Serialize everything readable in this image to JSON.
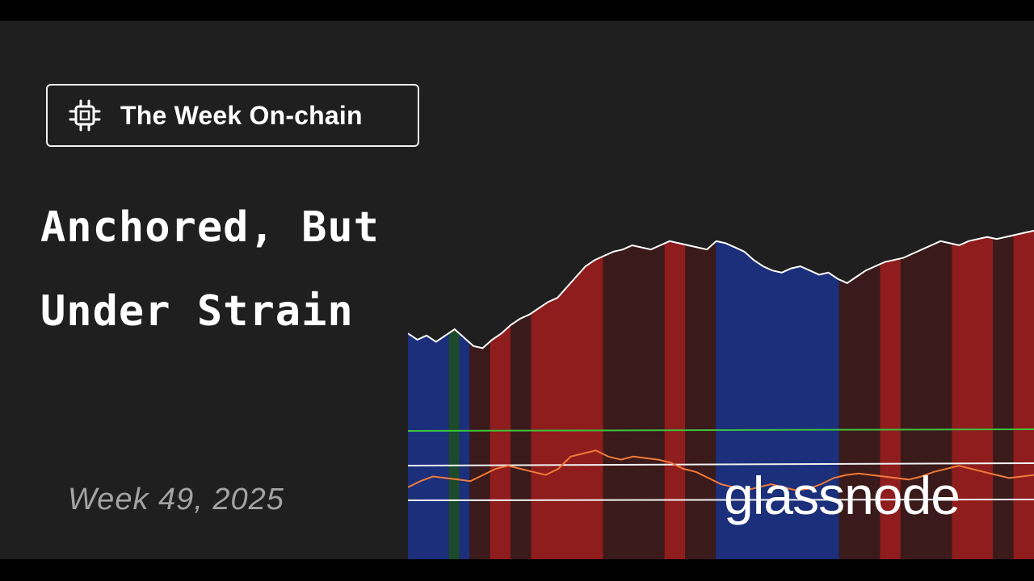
{
  "badge": {
    "label": "The Week On-chain",
    "icon": "chip-icon"
  },
  "title": {
    "line1": "Anchored, But",
    "line2": "Under Strain"
  },
  "week": "Week 49, 2025",
  "brand": "glassnode",
  "colors": {
    "background": "#1f1f1f",
    "regime_red": "#8f1d1d",
    "regime_dark_red": "#3a1a1a",
    "regime_blue": "#1b2f7a",
    "regime_green": "#1c4a2a",
    "price_line": "#ffffff",
    "oscillator": "#f07a3a",
    "upper_band": "#3ec23e",
    "lower_bands": "#f2f2f2"
  },
  "chart_data": {
    "type": "line",
    "x_range": [
      0,
      100
    ],
    "series": [
      {
        "values": [
          28,
          25,
          27,
          24,
          27,
          30,
          26,
          22,
          21,
          25,
          28,
          32,
          35,
          37,
          40,
          43,
          45,
          50,
          55,
          60,
          63,
          65,
          67,
          68,
          70,
          69,
          68,
          70,
          72,
          71,
          70,
          69,
          68,
          72,
          71,
          69,
          67,
          63,
          60,
          58,
          57,
          59,
          60,
          58,
          56,
          57,
          54,
          52,
          55,
          58,
          60,
          62,
          63,
          64,
          66,
          68,
          70,
          72,
          71,
          70,
          72,
          73,
          74,
          73,
          74,
          75,
          76,
          77
        ]
      },
      {
        "values": [
          38,
          42,
          45,
          44,
          43,
          42,
          46,
          50,
          52,
          50,
          48,
          46,
          50,
          58,
          60,
          62,
          58,
          56,
          58,
          57,
          56,
          54,
          50,
          48,
          44,
          40,
          38,
          36,
          38,
          40,
          38,
          36,
          37,
          40,
          44,
          46,
          47,
          46,
          45,
          44,
          43,
          45,
          48,
          50,
          52,
          50,
          48,
          46,
          44,
          45,
          46
        ]
      }
    ],
    "regimes": [
      "blue",
      "blue",
      "green",
      "blue",
      "dark_red",
      "red",
      "dark_red",
      "red",
      "red",
      "dark_red",
      "dark_red",
      "red",
      "dark_red",
      "blue",
      "blue",
      "blue",
      "blue",
      "dark_red",
      "red",
      "dark_red",
      "dark_red",
      "red",
      "dark_red",
      "red"
    ]
  }
}
